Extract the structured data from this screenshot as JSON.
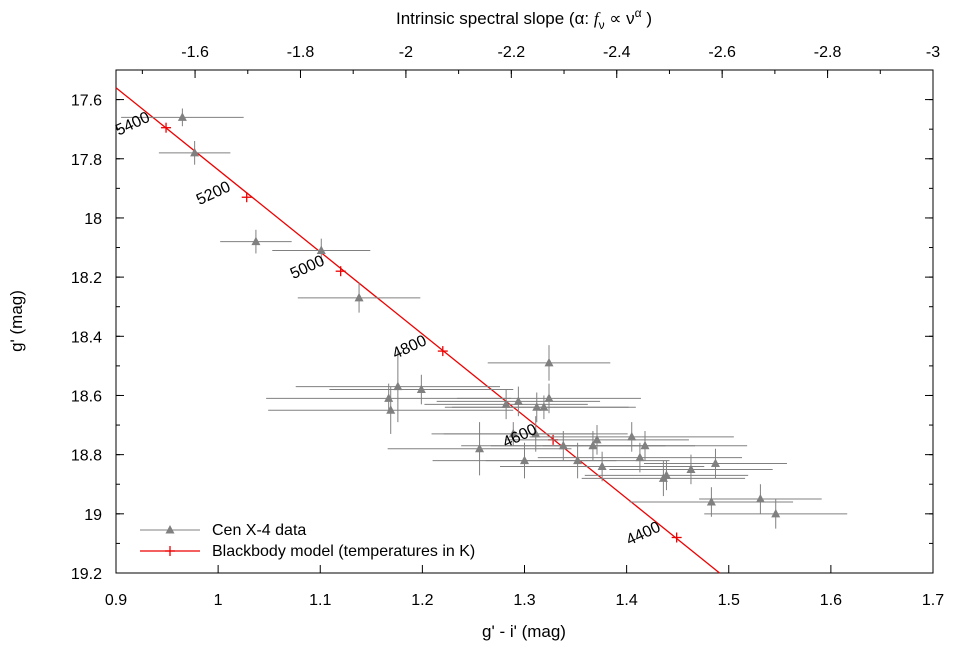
{
  "chart_data": {
    "type": "scatter",
    "xlabel": "g' - i' (mag)",
    "ylabel": "g' (mag)",
    "x2label": "Intrinsic spectral slope (α: f_ν ∝ ν^α )",
    "x2label_parts": [
      "Intrinsic spectral slope (α: ",
      "f",
      "ν",
      " ∝ ν",
      "α",
      " )"
    ],
    "xlim": [
      0.9,
      1.7
    ],
    "ylim": [
      19.2,
      17.5
    ],
    "y_inverted": true,
    "x2lim": [
      -1.45,
      -3.0
    ],
    "x_ticks": [
      "0.9",
      "1",
      "1.1",
      "1.2",
      "1.3",
      "1.4",
      "1.5",
      "1.6",
      "1.7"
    ],
    "y_ticks": [
      "17.6",
      "17.8",
      "18",
      "18.2",
      "18.4",
      "18.6",
      "18.8",
      "19",
      "19.2"
    ],
    "x2_ticks": [
      "-1.6",
      "-1.8",
      "-2",
      "-2.2",
      "-2.4",
      "-2.6",
      "-2.8",
      "-3"
    ],
    "grid": false,
    "legend_position": "bottom-left",
    "series": [
      {
        "name": "Cen X-4 data",
        "color": "#808080",
        "marker": "triangle",
        "points": [
          {
            "x": 0.965,
            "y": 17.66,
            "xerr": 0.06,
            "yerr": 0.03
          },
          {
            "x": 0.977,
            "y": 17.78,
            "xerr": 0.035,
            "yerr": 0.04
          },
          {
            "x": 1.037,
            "y": 18.08,
            "xerr": 0.035,
            "yerr": 0.04
          },
          {
            "x": 1.101,
            "y": 18.11,
            "xerr": 0.048,
            "yerr": 0.04
          },
          {
            "x": 1.138,
            "y": 18.27,
            "xerr": 0.06,
            "yerr": 0.05
          },
          {
            "x": 1.167,
            "y": 18.61,
            "xerr": 0.12,
            "yerr": 0.05
          },
          {
            "x": 1.169,
            "y": 18.65,
            "xerr": 0.12,
            "yerr": 0.08
          },
          {
            "x": 1.176,
            "y": 18.57,
            "xerr": 0.1,
            "yerr": 0.12
          },
          {
            "x": 1.199,
            "y": 18.58,
            "xerr": 0.09,
            "yerr": 0.05
          },
          {
            "x": 1.256,
            "y": 18.78,
            "xerr": 0.09,
            "yerr": 0.09
          },
          {
            "x": 1.282,
            "y": 18.63,
            "xerr": 0.08,
            "yerr": 0.05
          },
          {
            "x": 1.289,
            "y": 18.73,
            "xerr": 0.08,
            "yerr": 0.04
          },
          {
            "x": 1.294,
            "y": 18.62,
            "xerr": 0.08,
            "yerr": 0.05
          },
          {
            "x": 1.3,
            "y": 18.82,
            "xerr": 0.09,
            "yerr": 0.06
          },
          {
            "x": 1.311,
            "y": 18.73,
            "xerr": 0.09,
            "yerr": 0.06
          },
          {
            "x": 1.312,
            "y": 18.64,
            "xerr": 0.09,
            "yerr": 0.05
          },
          {
            "x": 1.319,
            "y": 18.64,
            "xerr": 0.09,
            "yerr": 0.04
          },
          {
            "x": 1.324,
            "y": 18.49,
            "xerr": 0.06,
            "yerr": 0.06
          },
          {
            "x": 1.324,
            "y": 18.61,
            "xerr": 0.09,
            "yerr": 0.05
          },
          {
            "x": 1.338,
            "y": 18.77,
            "xerr": 0.1,
            "yerr": 0.05
          },
          {
            "x": 1.352,
            "y": 18.82,
            "xerr": 0.09,
            "yerr": 0.06
          },
          {
            "x": 1.367,
            "y": 18.77,
            "xerr": 0.1,
            "yerr": 0.05
          },
          {
            "x": 1.371,
            "y": 18.75,
            "xerr": 0.09,
            "yerr": 0.05
          },
          {
            "x": 1.376,
            "y": 18.84,
            "xerr": 0.1,
            "yerr": 0.05
          },
          {
            "x": 1.405,
            "y": 18.74,
            "xerr": 0.1,
            "yerr": 0.05
          },
          {
            "x": 1.413,
            "y": 18.81,
            "xerr": 0.1,
            "yerr": 0.05
          },
          {
            "x": 1.418,
            "y": 18.77,
            "xerr": 0.1,
            "yerr": 0.05
          },
          {
            "x": 1.436,
            "y": 18.88,
            "xerr": 0.08,
            "yerr": 0.06
          },
          {
            "x": 1.439,
            "y": 18.87,
            "xerr": 0.08,
            "yerr": 0.05
          },
          {
            "x": 1.463,
            "y": 18.85,
            "xerr": 0.08,
            "yerr": 0.05
          },
          {
            "x": 1.483,
            "y": 18.96,
            "xerr": 0.08,
            "yerr": 0.05
          },
          {
            "x": 1.487,
            "y": 18.83,
            "xerr": 0.07,
            "yerr": 0.05
          },
          {
            "x": 1.531,
            "y": 18.95,
            "xerr": 0.06,
            "yerr": 0.05
          },
          {
            "x": 1.546,
            "y": 19.0,
            "xerr": 0.07,
            "yerr": 0.05
          }
        ]
      },
      {
        "name": "Blackbody model (temperatures in K)",
        "color": "#ee0000",
        "marker": "plus",
        "line_x": [
          0.9,
          1.491
        ],
        "line_y": [
          17.56,
          19.2
        ],
        "temperature_points": [
          {
            "T": "5400",
            "x": 0.949,
            "y": 17.695
          },
          {
            "T": "5200",
            "x": 1.028,
            "y": 17.93
          },
          {
            "T": "5000",
            "x": 1.12,
            "y": 18.18
          },
          {
            "T": "4800",
            "x": 1.22,
            "y": 18.45
          },
          {
            "T": "4600",
            "x": 1.328,
            "y": 18.75
          },
          {
            "T": "4400",
            "x": 1.449,
            "y": 19.08
          }
        ]
      }
    ]
  }
}
